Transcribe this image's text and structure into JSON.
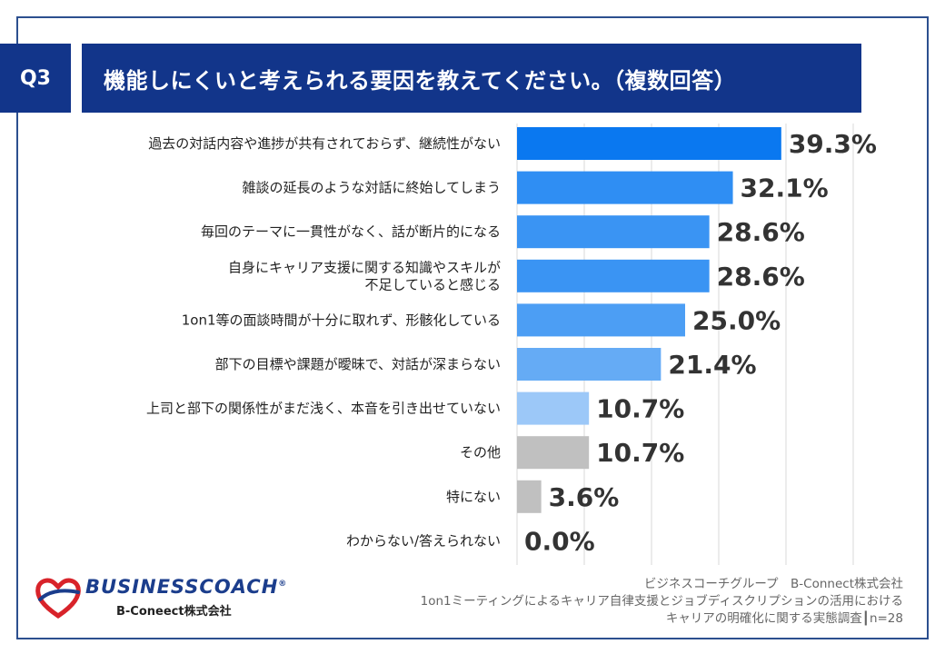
{
  "header": {
    "q_label": "Q3",
    "title": "機能しにくいと考えられる要因を教えてください。（複数回答）"
  },
  "chart_data": {
    "type": "bar",
    "orientation": "horizontal",
    "categories": [
      [
        "過去の対話内容や進捗が共有されておらず、継続性がない"
      ],
      [
        "雑談の延長のような対話に終始してしまう"
      ],
      [
        "毎回のテーマに一貫性がなく、話が断片的になる"
      ],
      [
        "自身にキャリア支援に関する知識やスキルが",
        "不足していると感じる"
      ],
      [
        "1on1等の面談時間が十分に取れず、形骸化している"
      ],
      [
        "部下の目標や課題が曖昧で、対話が深まらない"
      ],
      [
        "上司と部下の関係性がまだ浅く、本音を引き出せていない"
      ],
      [
        "その他"
      ],
      [
        "特にない"
      ],
      [
        "わからない/答えられない"
      ]
    ],
    "values": [
      39.3,
      32.1,
      28.6,
      28.6,
      25.0,
      21.4,
      10.7,
      10.7,
      3.6,
      0.0
    ],
    "value_labels": [
      "39.3%",
      "32.1%",
      "28.6%",
      "28.6%",
      "25.0%",
      "21.4%",
      "10.7%",
      "10.7%",
      "3.6%",
      "0.0%"
    ],
    "colors": [
      "#0a78f0",
      "#2f8ef3",
      "#3a94f3",
      "#3a94f3",
      "#4c9ef4",
      "#65abf5",
      "#9cc8f8",
      "#c0c0c0",
      "#c0c0c0",
      "#c0c0c0"
    ],
    "xlim": [
      0,
      50
    ],
    "grid": true
  },
  "logo": {
    "main": "BUSINESSCOACH",
    "reg": "®",
    "sub": "B-Coneect株式会社"
  },
  "footer": {
    "line1": "ビジネスコーチグループ　B-Connect株式会社",
    "line2": "1on1ミーティングによるキャリア自律支援とジョブディスクリプションの活用における",
    "line3": "キャリアの明確化に関する実態調査┃n=28"
  }
}
